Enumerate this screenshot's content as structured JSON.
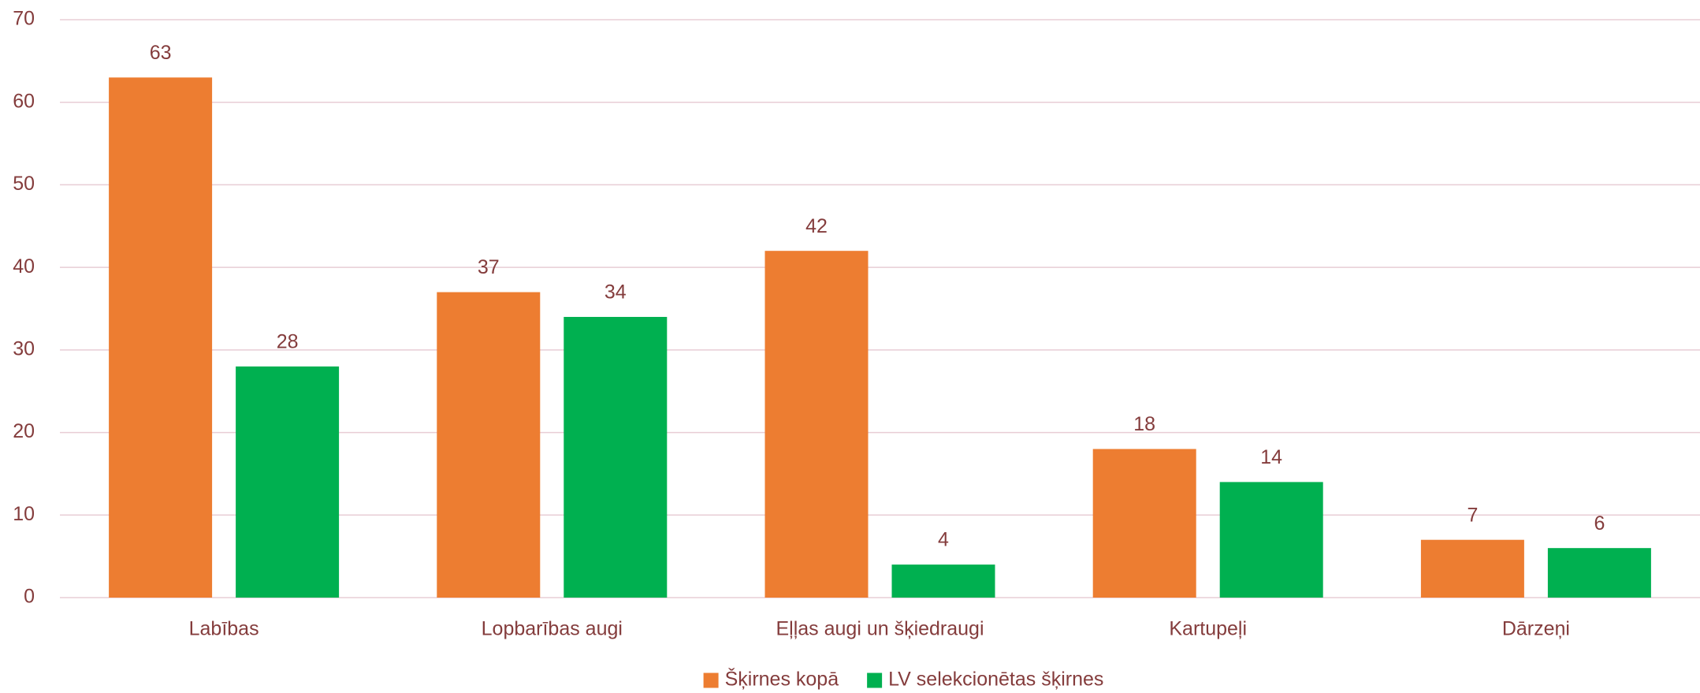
{
  "chart_data": {
    "type": "bar",
    "categories": [
      "Labības",
      "Lopbarības augi",
      "Eļļas augi un šķiedraugi",
      "Kartupeļi",
      "Dārzeņi"
    ],
    "series": [
      {
        "name": "Šķirnes kopā",
        "color": "#ED7D31",
        "values": [
          63,
          37,
          42,
          18,
          7
        ]
      },
      {
        "name": "LV selekcionētas šķirnes",
        "color": "#00B050",
        "values": [
          28,
          34,
          4,
          14,
          6
        ]
      }
    ],
    "ylim": [
      0,
      70
    ],
    "yticks": [
      0,
      10,
      20,
      30,
      40,
      50,
      60,
      70
    ],
    "grid": true,
    "legend": "bottom"
  }
}
